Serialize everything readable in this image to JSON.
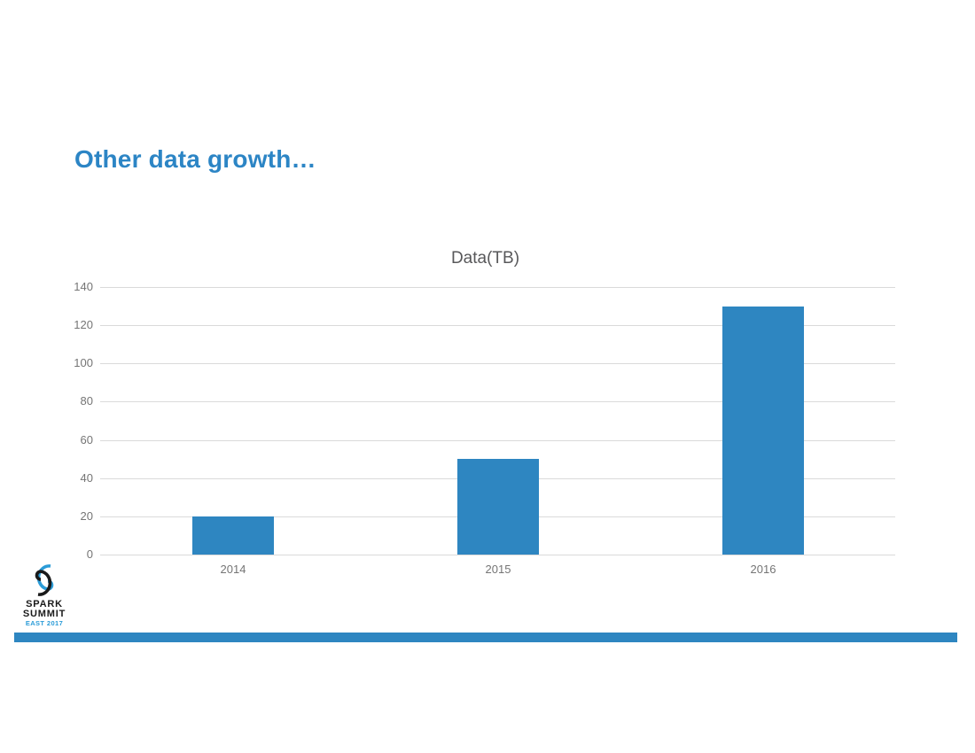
{
  "slide": {
    "title": "Other data growth…"
  },
  "chart_data": {
    "type": "bar",
    "title": "Data(TB)",
    "categories": [
      "2014",
      "2015",
      "2016"
    ],
    "values": [
      20,
      50,
      130
    ],
    "xlabel": "",
    "ylabel": "",
    "ylim": [
      0,
      140
    ],
    "ytick_step": 20,
    "grid": true,
    "legend": "none",
    "bar_color": "#2E86C1"
  },
  "logo": {
    "line1": "SPARK",
    "line2": "SUMMIT",
    "line3": "EAST 2017"
  },
  "colors": {
    "accent": "#2E86C1",
    "title_text": "#2C85C5",
    "chart_title_text": "#58585A",
    "axis_text": "#757575",
    "gridline": "#DADADA",
    "logo_black": "#1A1A1A",
    "logo_blue": "#2B9CD8",
    "footer_bar": "#2E86C1"
  }
}
